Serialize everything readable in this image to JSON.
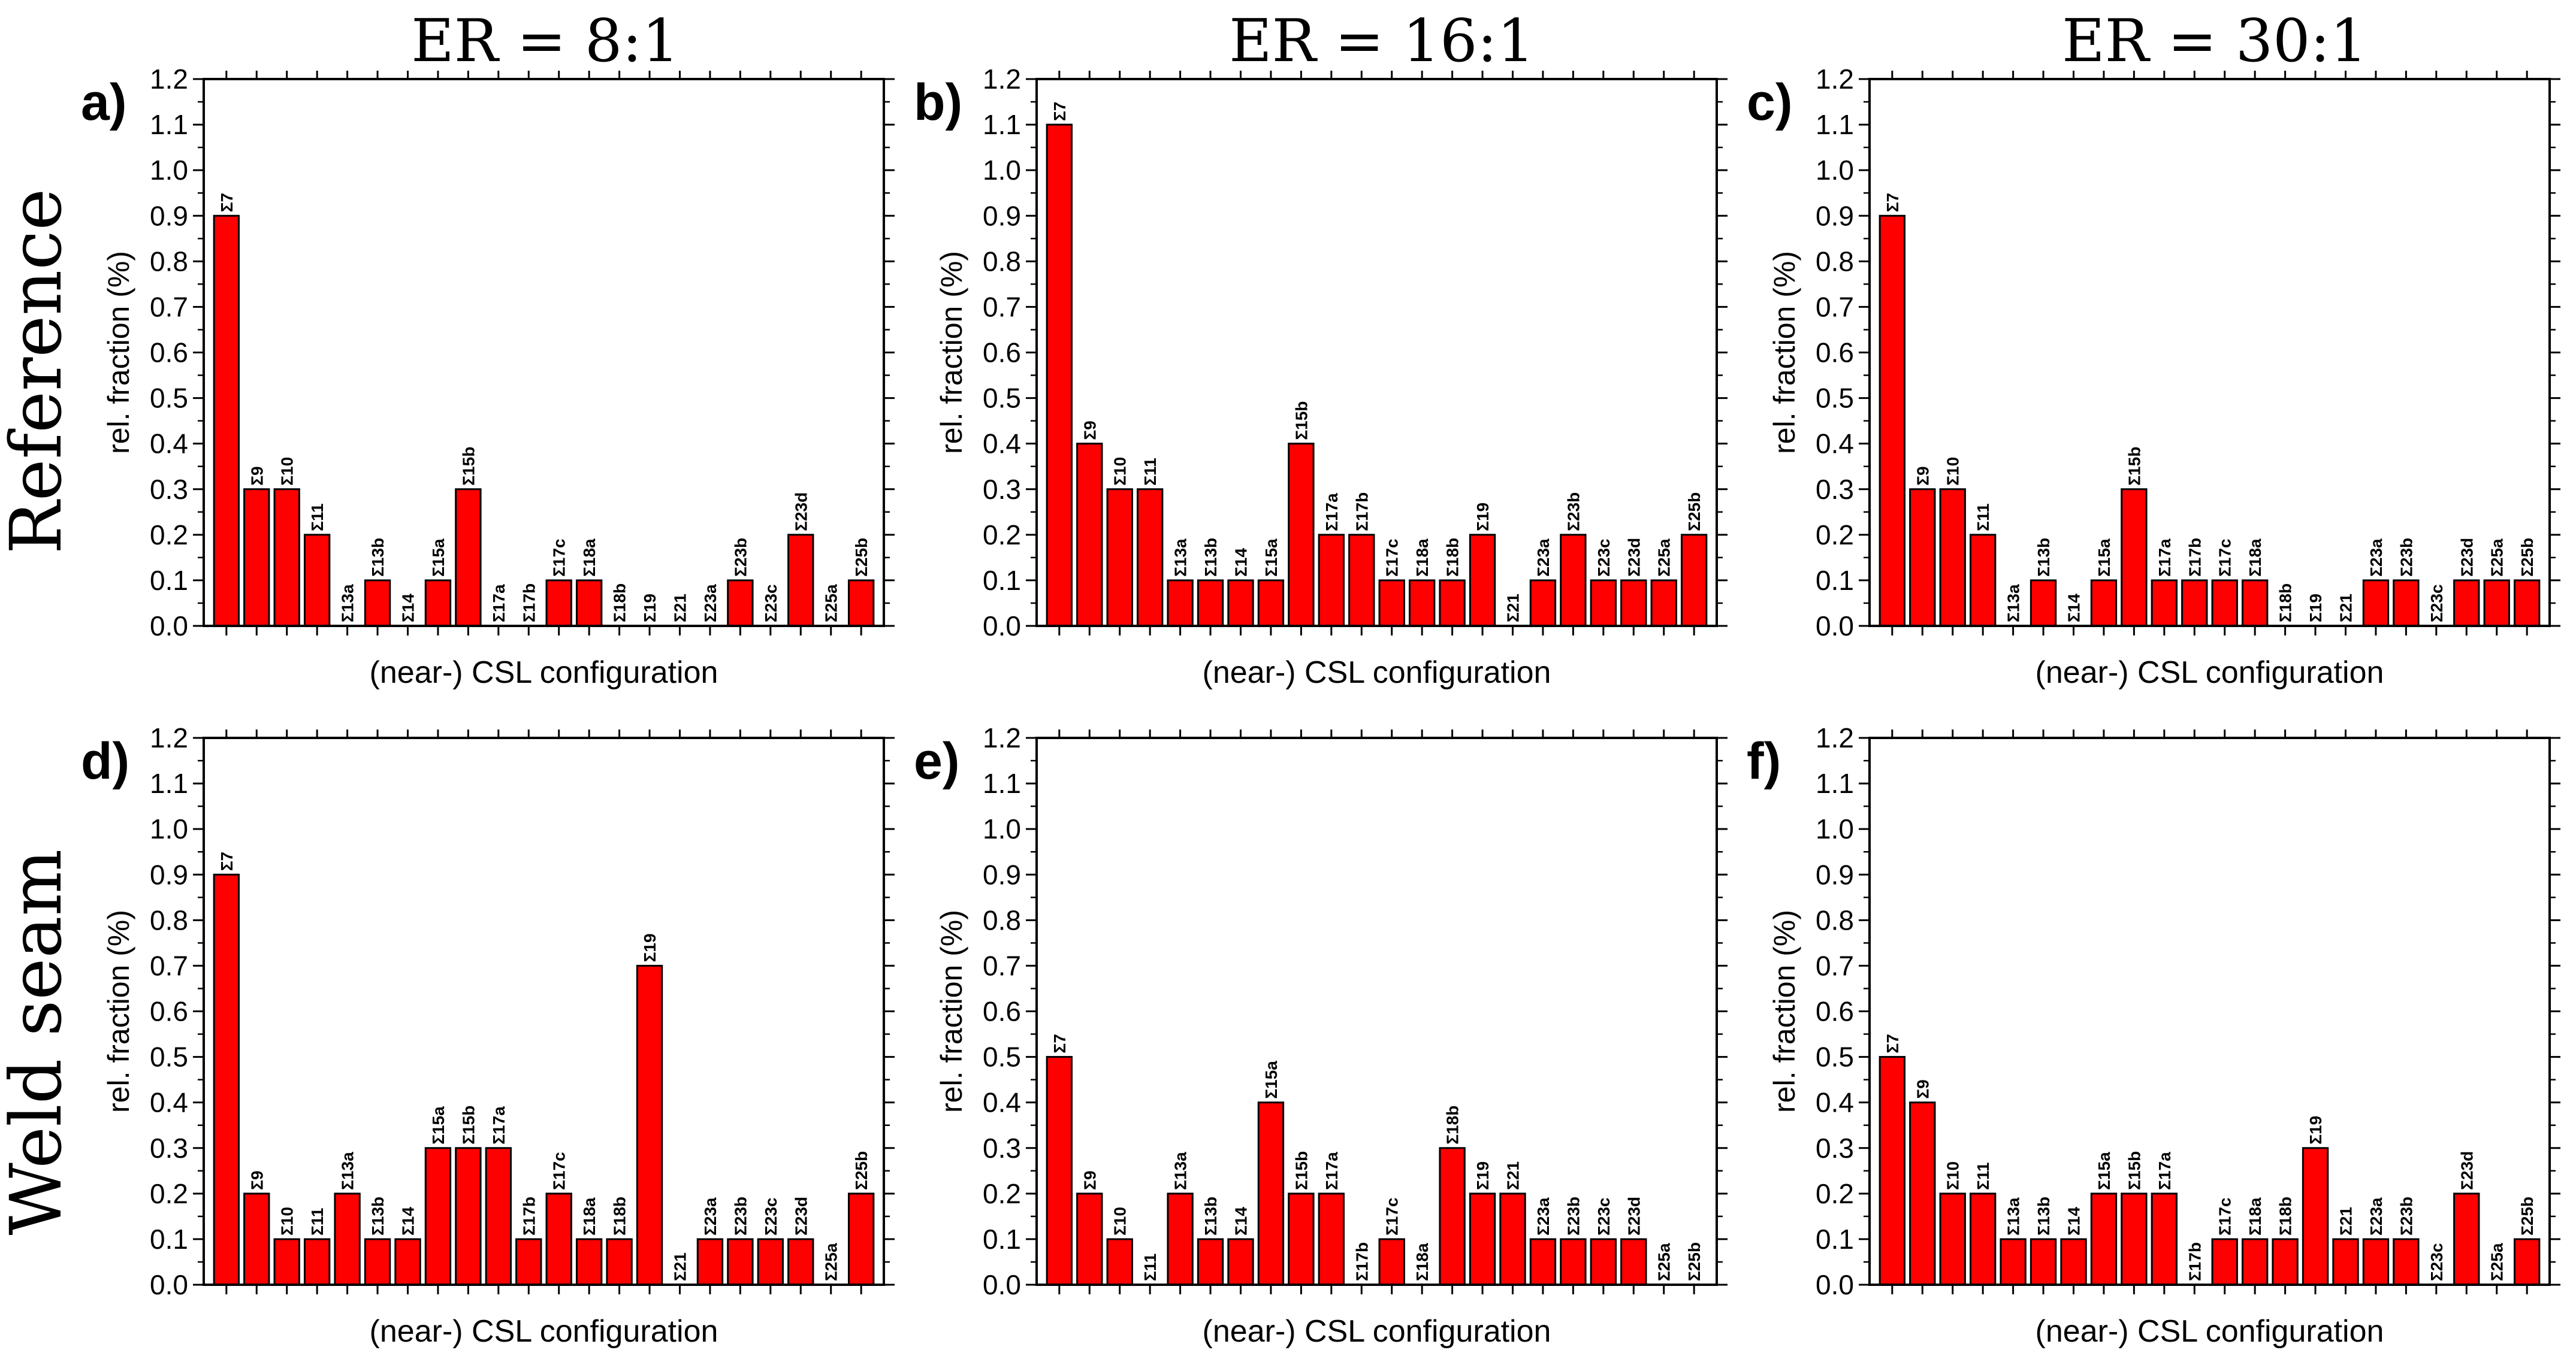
{
  "figure": {
    "column_titles": [
      "ER = 8:1",
      "ER = 16:1",
      "ER = 30:1"
    ],
    "row_labels": [
      "Reference",
      "Weld seam"
    ],
    "colors": {
      "bar": "#ff0000",
      "bar_edge": "#000000",
      "axis": "#000000"
    }
  },
  "chart_data": [
    {
      "type": "bar",
      "panel_label": "a)",
      "title": "",
      "xlabel": "(near-) CSL configuration",
      "ylabel": "rel. fraction (%)",
      "ylim": [
        0,
        1.2
      ],
      "yticks": [
        "0.0",
        "0.1",
        "0.2",
        "0.3",
        "0.4",
        "0.5",
        "0.6",
        "0.7",
        "0.8",
        "0.9",
        "1.0",
        "1.1",
        "1.2"
      ],
      "categories": [
        "Σ7",
        "Σ9",
        "Σ10",
        "Σ11",
        "Σ13a",
        "Σ13b",
        "Σ14",
        "Σ15a",
        "Σ15b",
        "Σ17a",
        "Σ17b",
        "Σ17c",
        "Σ18a",
        "Σ18b",
        "Σ19",
        "Σ21",
        "Σ23a",
        "Σ23b",
        "Σ23c",
        "Σ23d",
        "Σ25a",
        "Σ25b"
      ],
      "values": [
        0.9,
        0.3,
        0.3,
        0.2,
        0,
        0.1,
        0,
        0.1,
        0.3,
        0,
        0,
        0.1,
        0.1,
        0,
        0,
        0,
        0,
        0.1,
        0,
        0.2,
        0,
        0.1
      ]
    },
    {
      "type": "bar",
      "panel_label": "b)",
      "title": "",
      "xlabel": "(near-) CSL configuration",
      "ylabel": "rel. fraction (%)",
      "ylim": [
        0,
        1.2
      ],
      "yticks": [
        "0.0",
        "0.1",
        "0.2",
        "0.3",
        "0.4",
        "0.5",
        "0.6",
        "0.7",
        "0.8",
        "0.9",
        "1.0",
        "1.1",
        "1.2"
      ],
      "categories": [
        "Σ7",
        "Σ9",
        "Σ10",
        "Σ11",
        "Σ13a",
        "Σ13b",
        "Σ14",
        "Σ15a",
        "Σ15b",
        "Σ17a",
        "Σ17b",
        "Σ17c",
        "Σ18a",
        "Σ18b",
        "Σ19",
        "Σ21",
        "Σ23a",
        "Σ23b",
        "Σ23c",
        "Σ23d",
        "Σ25a",
        "Σ25b"
      ],
      "values": [
        1.1,
        0.4,
        0.3,
        0.3,
        0.1,
        0.1,
        0.1,
        0.1,
        0.4,
        0.2,
        0.2,
        0.1,
        0.1,
        0.1,
        0.2,
        0,
        0.1,
        0.2,
        0.1,
        0.1,
        0.1,
        0.2
      ]
    },
    {
      "type": "bar",
      "panel_label": "c)",
      "title": "",
      "xlabel": "(near-) CSL configuration",
      "ylabel": "rel. fraction (%)",
      "ylim": [
        0,
        1.2
      ],
      "yticks": [
        "0.0",
        "0.1",
        "0.2",
        "0.3",
        "0.4",
        "0.5",
        "0.6",
        "0.7",
        "0.8",
        "0.9",
        "1.0",
        "1.1",
        "1.2"
      ],
      "categories": [
        "Σ7",
        "Σ9",
        "Σ10",
        "Σ11",
        "Σ13a",
        "Σ13b",
        "Σ14",
        "Σ15a",
        "Σ15b",
        "Σ17a",
        "Σ17b",
        "Σ17c",
        "Σ18a",
        "Σ18b",
        "Σ19",
        "Σ21",
        "Σ23a",
        "Σ23b",
        "Σ23c",
        "Σ23d",
        "Σ25a",
        "Σ25b"
      ],
      "values": [
        0.9,
        0.3,
        0.3,
        0.2,
        0,
        0.1,
        0,
        0.1,
        0.3,
        0.1,
        0.1,
        0.1,
        0.1,
        0,
        0,
        0,
        0.1,
        0.1,
        0,
        0.1,
        0.1,
        0.1
      ]
    },
    {
      "type": "bar",
      "panel_label": "d)",
      "title": "",
      "xlabel": "(near-) CSL configuration",
      "ylabel": "rel. fraction (%)",
      "ylim": [
        0,
        1.2
      ],
      "yticks": [
        "0.0",
        "0.1",
        "0.2",
        "0.3",
        "0.4",
        "0.5",
        "0.6",
        "0.7",
        "0.8",
        "0.9",
        "1.0",
        "1.1",
        "1.2"
      ],
      "categories": [
        "Σ7",
        "Σ9",
        "Σ10",
        "Σ11",
        "Σ13a",
        "Σ13b",
        "Σ14",
        "Σ15a",
        "Σ15b",
        "Σ17a",
        "Σ17b",
        "Σ17c",
        "Σ18a",
        "Σ18b",
        "Σ19",
        "Σ21",
        "Σ23a",
        "Σ23b",
        "Σ23c",
        "Σ23d",
        "Σ25a",
        "Σ25b"
      ],
      "values": [
        0.9,
        0.2,
        0.1,
        0.1,
        0.2,
        0.1,
        0.1,
        0.3,
        0.3,
        0.3,
        0.1,
        0.2,
        0.1,
        0.1,
        0.7,
        0,
        0.1,
        0.1,
        0.1,
        0.1,
        0,
        0.2
      ]
    },
    {
      "type": "bar",
      "panel_label": "e)",
      "title": "",
      "xlabel": "(near-) CSL configuration",
      "ylabel": "rel. fraction (%)",
      "ylim": [
        0,
        1.2
      ],
      "yticks": [
        "0.0",
        "0.1",
        "0.2",
        "0.3",
        "0.4",
        "0.5",
        "0.6",
        "0.7",
        "0.8",
        "0.9",
        "1.0",
        "1.1",
        "1.2"
      ],
      "categories": [
        "Σ7",
        "Σ9",
        "Σ10",
        "Σ11",
        "Σ13a",
        "Σ13b",
        "Σ14",
        "Σ15a",
        "Σ15b",
        "Σ17a",
        "Σ17b",
        "Σ17c",
        "Σ18a",
        "Σ18b",
        "Σ19",
        "Σ21",
        "Σ23a",
        "Σ23b",
        "Σ23c",
        "Σ23d",
        "Σ25a",
        "Σ25b"
      ],
      "values": [
        0.5,
        0.2,
        0.1,
        0,
        0.2,
        0.1,
        0.1,
        0.4,
        0.2,
        0.2,
        0,
        0.1,
        0,
        0.3,
        0.2,
        0.2,
        0.1,
        0.1,
        0.1,
        0.1,
        0,
        0
      ]
    },
    {
      "type": "bar",
      "panel_label": "f)",
      "title": "",
      "xlabel": "(near-) CSL configuration",
      "ylabel": "rel. fraction (%)",
      "ylim": [
        0,
        1.2
      ],
      "yticks": [
        "0.0",
        "0.1",
        "0.2",
        "0.3",
        "0.4",
        "0.5",
        "0.6",
        "0.7",
        "0.8",
        "0.9",
        "1.0",
        "1.1",
        "1.2"
      ],
      "categories": [
        "Σ7",
        "Σ9",
        "Σ10",
        "Σ11",
        "Σ13a",
        "Σ13b",
        "Σ14",
        "Σ15a",
        "Σ15b",
        "Σ17a",
        "Σ17b",
        "Σ17c",
        "Σ18a",
        "Σ18b",
        "Σ19",
        "Σ21",
        "Σ23a",
        "Σ23b",
        "Σ23c",
        "Σ23d",
        "Σ25a",
        "Σ25b"
      ],
      "values": [
        0.5,
        0.4,
        0.2,
        0.2,
        0.1,
        0.1,
        0.1,
        0.2,
        0.2,
        0.2,
        0,
        0.1,
        0.1,
        0.1,
        0.3,
        0.1,
        0.1,
        0.1,
        0,
        0.2,
        0,
        0.1
      ]
    }
  ]
}
